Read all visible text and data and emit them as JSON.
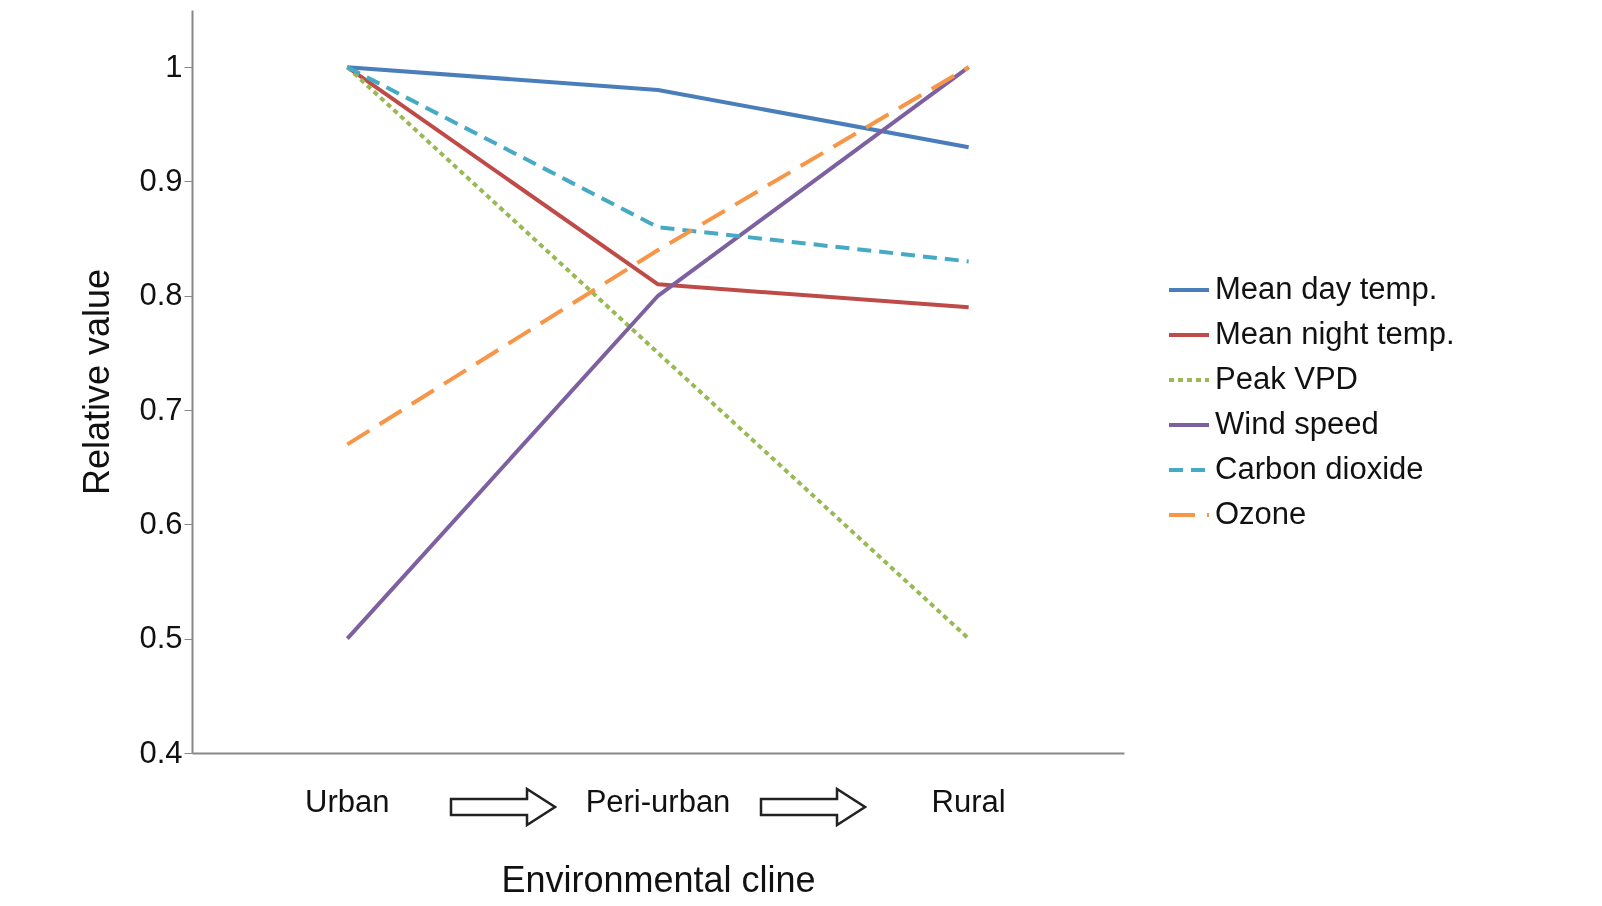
{
  "chart_data": {
    "type": "line",
    "xlabel": "Environmental cline",
    "ylabel": "Relative value",
    "categories": [
      "Urban",
      "Peri-urban",
      "Rural"
    ],
    "series": [
      {
        "name": "Mean day temp.",
        "color": "#4a7ebb",
        "line_style": "solid",
        "values": [
          1,
          0.98,
          0.93
        ]
      },
      {
        "name": "Mean night temp.",
        "color": "#be4b48",
        "line_style": "solid",
        "values": [
          1,
          0.81,
          0.79
        ]
      },
      {
        "name": "Peak VPD",
        "color": "#98b954",
        "line_style": "dotted",
        "values": [
          1,
          0.75,
          0.5
        ]
      },
      {
        "name": "Wind speed",
        "color": "#7d60a0",
        "line_style": "solid",
        "values": [
          0.5,
          0.8,
          1
        ]
      },
      {
        "name": "Carbon dioxide",
        "color": "#46aac5",
        "line_style": "dashed",
        "values": [
          1,
          0.86,
          0.83
        ]
      },
      {
        "name": "Ozone",
        "color": "#f79646",
        "line_style": "longdash",
        "values": [
          0.67,
          0.84,
          1
        ]
      }
    ],
    "ylim": [
      0.4,
      1.05
    ],
    "yticks": [
      0.4,
      0.5,
      0.6,
      0.7,
      0.8,
      0.9,
      1
    ],
    "grid": false,
    "legend": "right",
    "marker": "none"
  }
}
